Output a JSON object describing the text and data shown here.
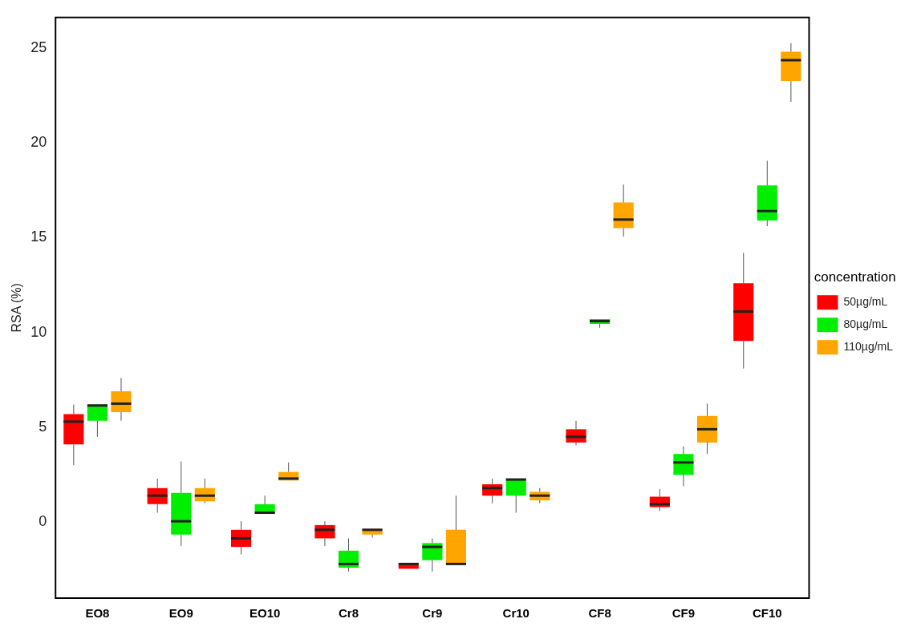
{
  "chart_data": {
    "type": "box",
    "ylabel": "RSA (%)",
    "legend_title": "concentration",
    "legend": "right",
    "grid": false,
    "ylim": [
      -4,
      26.6
    ],
    "yticks": [
      0,
      5,
      10,
      15,
      20,
      25
    ],
    "categories": [
      "EO8",
      "EO9",
      "EO10",
      "Cr8",
      "Cr9",
      "Cr10",
      "CF8",
      "CF9",
      "CF10"
    ],
    "series": [
      {
        "name": "50µg/mL",
        "color": "#ff0000",
        "boxes": [
          {
            "low": 3.0,
            "q1": 4.1,
            "median": 5.3,
            "q3": 5.7,
            "high": 6.2
          },
          {
            "low": 0.5,
            "q1": 0.95,
            "median": 1.4,
            "q3": 1.8,
            "high": 2.3
          },
          {
            "low": -1.7,
            "q1": -1.3,
            "median": -0.85,
            "q3": -0.4,
            "high": 0.05
          },
          {
            "low": -1.25,
            "q1": -0.85,
            "median": -0.4,
            "q3": -0.15,
            "high": 0.05
          },
          {
            "low": -2.2,
            "q1": -2.2,
            "median": -2.2,
            "q3": -2.2,
            "high": -2.2
          },
          {
            "low": 1.0,
            "q1": 1.4,
            "median": 1.8,
            "q3": 2.0,
            "high": 2.3
          },
          {
            "low": 4.05,
            "q1": 4.2,
            "median": 4.5,
            "q3": 4.9,
            "high": 5.35
          },
          {
            "low": 0.6,
            "q1": 0.8,
            "median": 0.95,
            "q3": 1.35,
            "high": 1.75
          },
          {
            "low": 8.1,
            "q1": 9.55,
            "median": 11.1,
            "q3": 12.6,
            "high": 14.2
          }
        ]
      },
      {
        "name": "80µg/mL",
        "color": "#00ee00",
        "boxes": [
          {
            "low": 4.5,
            "q1": 5.35,
            "median": 6.15,
            "q3": 6.2,
            "high": 6.2
          },
          {
            "low": -1.25,
            "q1": -0.65,
            "median": 0.05,
            "q3": 1.55,
            "high": 3.2
          },
          {
            "low": 0.45,
            "q1": 0.45,
            "median": 0.5,
            "q3": 0.95,
            "high": 1.4
          },
          {
            "low": -2.6,
            "q1": -2.4,
            "median": -2.2,
            "q3": -1.5,
            "high": -0.85
          },
          {
            "low": -2.6,
            "q1": -2.0,
            "median": -1.3,
            "q3": -1.1,
            "high": -0.85
          },
          {
            "low": 0.5,
            "q1": 1.4,
            "median": 2.25,
            "q3": 2.3,
            "high": 2.3
          },
          {
            "low": 10.25,
            "q1": 10.45,
            "median": 10.6,
            "q3": 10.7,
            "high": 10.7
          },
          {
            "low": 1.9,
            "q1": 2.5,
            "median": 3.15,
            "q3": 3.6,
            "high": 4.0
          },
          {
            "low": 15.6,
            "q1": 15.9,
            "median": 16.4,
            "q3": 17.75,
            "high": 19.05
          }
        ]
      },
      {
        "name": "110µg/mL",
        "color": "#ffa500",
        "boxes": [
          {
            "low": 5.35,
            "q1": 5.8,
            "median": 6.25,
            "q3": 6.9,
            "high": 7.6
          },
          {
            "low": 1.0,
            "q1": 1.1,
            "median": 1.4,
            "q3": 1.8,
            "high": 2.3
          },
          {
            "low": 2.2,
            "q1": 2.2,
            "median": 2.3,
            "q3": 2.65,
            "high": 3.15
          },
          {
            "low": -0.8,
            "q1": -0.65,
            "median": -0.4,
            "q3": -0.35,
            "high": -0.35
          },
          {
            "low": -2.2,
            "q1": -2.2,
            "median": -2.2,
            "q3": -0.4,
            "high": 1.4
          },
          {
            "low": 1.0,
            "q1": 1.15,
            "median": 1.4,
            "q3": 1.6,
            "high": 1.8
          },
          {
            "low": 15.05,
            "q1": 15.5,
            "median": 15.95,
            "q3": 16.85,
            "high": 17.8
          },
          {
            "low": 3.6,
            "q1": 4.2,
            "median": 4.9,
            "q3": 5.6,
            "high": 6.25
          },
          {
            "low": 22.15,
            "q1": 23.25,
            "median": 24.35,
            "q3": 24.8,
            "high": 25.25
          }
        ]
      }
    ]
  }
}
